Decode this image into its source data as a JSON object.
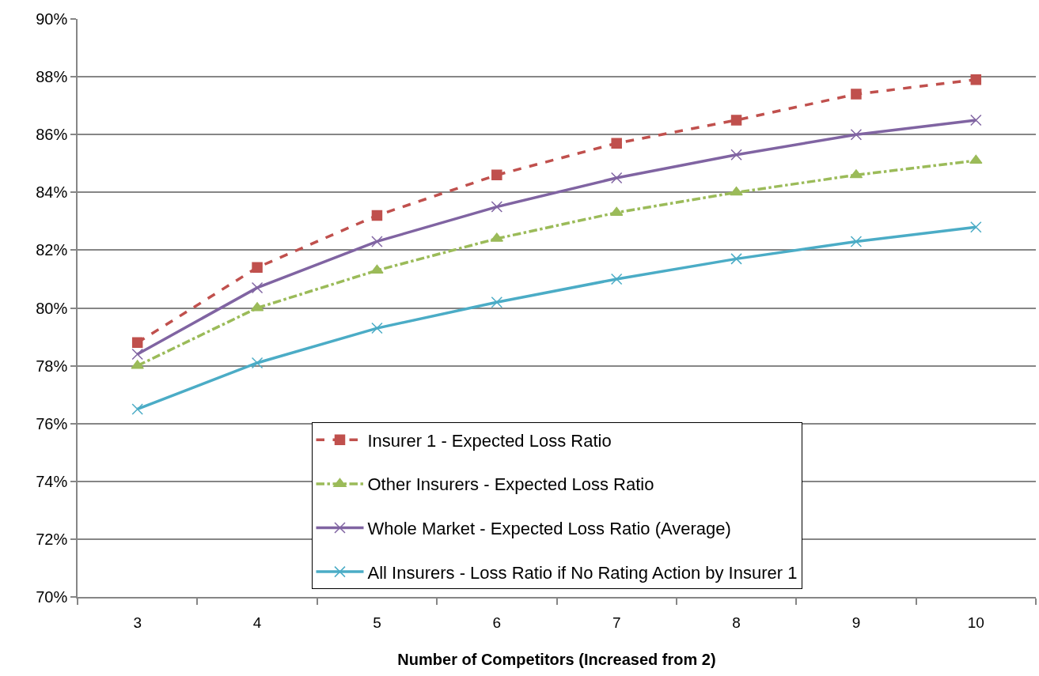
{
  "chart_data": {
    "type": "line",
    "xlabel": "Number of Competitors (Increased from 2)",
    "categories": [
      "3",
      "4",
      "5",
      "6",
      "7",
      "8",
      "9",
      "10"
    ],
    "ylim": [
      70,
      90
    ],
    "yticks": [
      {
        "value": 70,
        "label": "70%"
      },
      {
        "value": 72,
        "label": "72%"
      },
      {
        "value": 74,
        "label": "74%"
      },
      {
        "value": 76,
        "label": "76%"
      },
      {
        "value": 78,
        "label": "78%"
      },
      {
        "value": 80,
        "label": "80%"
      },
      {
        "value": 82,
        "label": "82%"
      },
      {
        "value": 84,
        "label": "84%"
      },
      {
        "value": 86,
        "label": "86%"
      },
      {
        "value": 88,
        "label": "88%"
      },
      {
        "value": 90,
        "label": "90%"
      }
    ],
    "grid": "y",
    "legend": "bottom",
    "series": [
      {
        "name": "Insurer 1 - Expected Loss Ratio",
        "color": "#c0504d",
        "marker": "square",
        "line_style": "dashed",
        "values": [
          78.8,
          81.4,
          83.2,
          84.6,
          85.7,
          86.5,
          87.4,
          87.9
        ]
      },
      {
        "name": "Other Insurers - Expected Loss Ratio",
        "color": "#9bbb59",
        "marker": "triangle",
        "line_style": "dashdot",
        "values": [
          78.0,
          80.0,
          81.3,
          82.4,
          83.3,
          84.0,
          84.6,
          85.1
        ]
      },
      {
        "name": "Whole Market - Expected Loss Ratio (Average)",
        "color": "#8064a2",
        "marker": "cross",
        "line_style": "solid",
        "values": [
          78.4,
          80.7,
          82.3,
          83.5,
          84.5,
          85.3,
          86.0,
          86.5
        ]
      },
      {
        "name": "All Insurers - Loss Ratio if No Rating Action by Insurer 1",
        "color": "#4bacc6",
        "marker": "cross",
        "line_style": "solid",
        "values": [
          76.5,
          78.1,
          79.3,
          80.2,
          81.0,
          81.7,
          82.3,
          82.8
        ]
      }
    ]
  }
}
